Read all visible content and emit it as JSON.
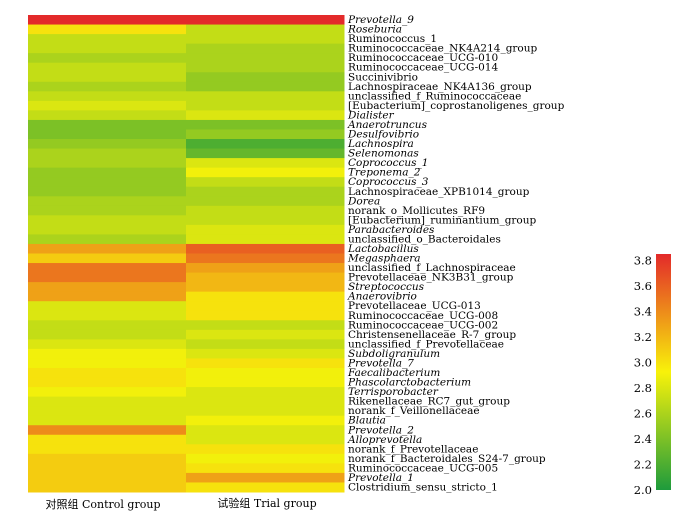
{
  "chart_data": {
    "type": "heatmap",
    "columns": [
      "对照组 Control group",
      "试验组 Trial group"
    ],
    "rows": [
      {
        "name": "Prevotella_9",
        "italic": true,
        "values": [
          3.85,
          3.85
        ]
      },
      {
        "name": "Roseburia",
        "italic": true,
        "values": [
          3.0,
          2.7
        ]
      },
      {
        "name": "Ruminococcus_1",
        "italic": false,
        "values": [
          2.7,
          2.7
        ]
      },
      {
        "name": "Ruminococcaceae_NK4A214_group",
        "italic": false,
        "values": [
          2.7,
          2.6
        ]
      },
      {
        "name": "Ruminococcaceae_UCG-010",
        "italic": false,
        "values": [
          2.6,
          2.6
        ]
      },
      {
        "name": "Ruminococcaceae_UCG-014",
        "italic": false,
        "values": [
          2.7,
          2.6
        ]
      },
      {
        "name": "Succinivibrio",
        "italic": false,
        "values": [
          2.7,
          2.5
        ]
      },
      {
        "name": "Lachnospiraceae_NK4A136_group",
        "italic": false,
        "values": [
          2.6,
          2.5
        ]
      },
      {
        "name": "unclassified_f_Ruminococcaceae",
        "italic": false,
        "values": [
          2.7,
          2.7
        ]
      },
      {
        "name": "[Eubacterium]_coprostanoligenes_group",
        "italic": false,
        "values": [
          2.8,
          2.7
        ]
      },
      {
        "name": "Dialister",
        "italic": true,
        "values": [
          2.7,
          2.8
        ]
      },
      {
        "name": "Anaerotruncus",
        "italic": true,
        "values": [
          2.4,
          2.4
        ]
      },
      {
        "name": "Desulfovibrio",
        "italic": true,
        "values": [
          2.4,
          2.5
        ]
      },
      {
        "name": "Lachnospira",
        "italic": true,
        "values": [
          2.5,
          2.2
        ]
      },
      {
        "name": "Selenomonas",
        "italic": true,
        "values": [
          2.6,
          2.3
        ]
      },
      {
        "name": "Coprococcus_1",
        "italic": true,
        "values": [
          2.6,
          2.8
        ]
      },
      {
        "name": "Treponema_2",
        "italic": true,
        "values": [
          2.5,
          2.9
        ]
      },
      {
        "name": "Coprococcus_3",
        "italic": true,
        "values": [
          2.5,
          2.7
        ]
      },
      {
        "name": "Lachnospiraceae_XPB1014_group",
        "italic": false,
        "values": [
          2.5,
          2.6
        ]
      },
      {
        "name": "Dorea",
        "italic": true,
        "values": [
          2.6,
          2.6
        ]
      },
      {
        "name": "norank_o_Mollicutes_RF9",
        "italic": false,
        "values": [
          2.6,
          2.7
        ]
      },
      {
        "name": "[Eubacterium]_ruminantium_group",
        "italic": false,
        "values": [
          2.7,
          2.7
        ]
      },
      {
        "name": "Parabacteroides",
        "italic": true,
        "values": [
          2.7,
          2.8
        ]
      },
      {
        "name": "unclassified_o_Bacteroidales",
        "italic": false,
        "values": [
          2.6,
          2.8
        ]
      },
      {
        "name": "Lactobacillus",
        "italic": true,
        "values": [
          3.3,
          3.6
        ]
      },
      {
        "name": "Megasphaera",
        "italic": true,
        "values": [
          3.1,
          3.5
        ]
      },
      {
        "name": "unclassified_f_Lachnospiraceae",
        "italic": false,
        "values": [
          3.5,
          3.3
        ]
      },
      {
        "name": "Prevotellaceae_NK3B31_group",
        "italic": false,
        "values": [
          3.5,
          3.2
        ]
      },
      {
        "name": "Streptococcus",
        "italic": true,
        "values": [
          3.3,
          3.2
        ]
      },
      {
        "name": "Anaerovibrio",
        "italic": true,
        "values": [
          3.3,
          3.0
        ]
      },
      {
        "name": "Prevotellaceae_UCG-013",
        "italic": false,
        "values": [
          2.8,
          3.0
        ]
      },
      {
        "name": "Ruminococcaceae_UCG-008",
        "italic": false,
        "values": [
          2.8,
          3.0
        ]
      },
      {
        "name": "Ruminococcaceae_UCG-002",
        "italic": false,
        "values": [
          2.7,
          2.7
        ]
      },
      {
        "name": "Christensenellaceae_R-7_group",
        "italic": false,
        "values": [
          2.7,
          2.8
        ]
      },
      {
        "name": "unclassified_f_Prevotellaceae",
        "italic": false,
        "values": [
          2.8,
          2.7
        ]
      },
      {
        "name": "Subdoligranulum",
        "italic": true,
        "values": [
          2.9,
          2.8
        ]
      },
      {
        "name": "Prevotella_7",
        "italic": true,
        "values": [
          2.9,
          3.0
        ]
      },
      {
        "name": "Faecalibacterium",
        "italic": true,
        "values": [
          3.0,
          2.9
        ]
      },
      {
        "name": "Phascolarctobacterium",
        "italic": true,
        "values": [
          3.0,
          2.9
        ]
      },
      {
        "name": "Terrisporobacter",
        "italic": true,
        "values": [
          2.9,
          2.8
        ]
      },
      {
        "name": "Rikenellaceae_RC7_gut_group",
        "italic": false,
        "values": [
          2.8,
          2.8
        ]
      },
      {
        "name": "norank_f_Veillonellaceae",
        "italic": false,
        "values": [
          2.8,
          2.8
        ]
      },
      {
        "name": "Blautia",
        "italic": true,
        "values": [
          2.8,
          2.9
        ]
      },
      {
        "name": "Prevotella_2",
        "italic": true,
        "values": [
          3.4,
          2.8
        ]
      },
      {
        "name": "Alloprevotella",
        "italic": true,
        "values": [
          3.0,
          2.8
        ]
      },
      {
        "name": "norank_f_Prevotellaceae",
        "italic": false,
        "values": [
          3.0,
          3.0
        ]
      },
      {
        "name": "norank_f_Bacteroidales_S24-7_group",
        "italic": false,
        "values": [
          3.1,
          2.9
        ]
      },
      {
        "name": "Ruminococcaceae_UCG-005",
        "italic": false,
        "values": [
          3.1,
          3.0
        ]
      },
      {
        "name": "Prevotella_1",
        "italic": true,
        "values": [
          3.1,
          3.3
        ]
      },
      {
        "name": "Clostridium_sensu_stricto_1",
        "italic": false,
        "values": [
          3.1,
          3.0
        ]
      }
    ],
    "colorbar": {
      "min": 2.0,
      "max": 3.85,
      "ticks": [
        2.0,
        2.2,
        2.4,
        2.6,
        2.8,
        3.0,
        3.2,
        3.4,
        3.6,
        3.8
      ],
      "tick_labels": [
        "2.0",
        "2.2",
        "2.4",
        "2.6",
        "2.8",
        "3.0",
        "3.2",
        "3.4",
        "3.6",
        "3.8"
      ],
      "colors": [
        "#1e9b3c",
        "#f8f20a",
        "#e32a2a"
      ]
    }
  }
}
